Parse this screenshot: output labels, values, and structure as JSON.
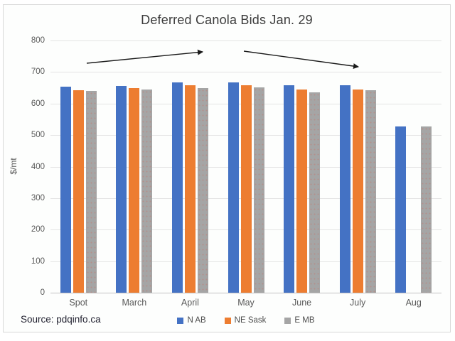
{
  "chart_data": {
    "type": "bar",
    "title": "Deferred Canola Bids Jan. 29",
    "xlabel": "",
    "ylabel": "$/mt",
    "ylim": [
      0,
      800
    ],
    "ytick_step": 100,
    "grid": true,
    "legend_position": "bottom",
    "categories": [
      "Spot",
      "March",
      "April",
      "May",
      "June",
      "July",
      "Aug"
    ],
    "series": [
      {
        "name": "N AB",
        "color": "#4472C4",
        "values": [
          653,
          656,
          667,
          668,
          657,
          657,
          528
        ]
      },
      {
        "name": "NE Sask",
        "color": "#ED7D31",
        "values": [
          643,
          648,
          658,
          657,
          645,
          645,
          null
        ]
      },
      {
        "name": "E MB",
        "color": "#A5A5A5",
        "values": [
          641,
          645,
          649,
          651,
          636,
          642,
          528
        ]
      }
    ],
    "annotations": [
      {
        "name": "uptrend-arrow",
        "direction": "up",
        "span": "Spot to April"
      },
      {
        "name": "downtrend-arrow",
        "direction": "down",
        "span": "May to July"
      }
    ],
    "source": "Source: pdqinfo.ca"
  },
  "colors": {
    "background": "#fdfefd",
    "frame_border": "#d9d9d9",
    "gridline": "#e4e4e4",
    "zero_axis": "#c2c2c2",
    "tick_label": "#595959",
    "title_text": "#3b3b3b",
    "arrow": "#1a1a1a"
  }
}
